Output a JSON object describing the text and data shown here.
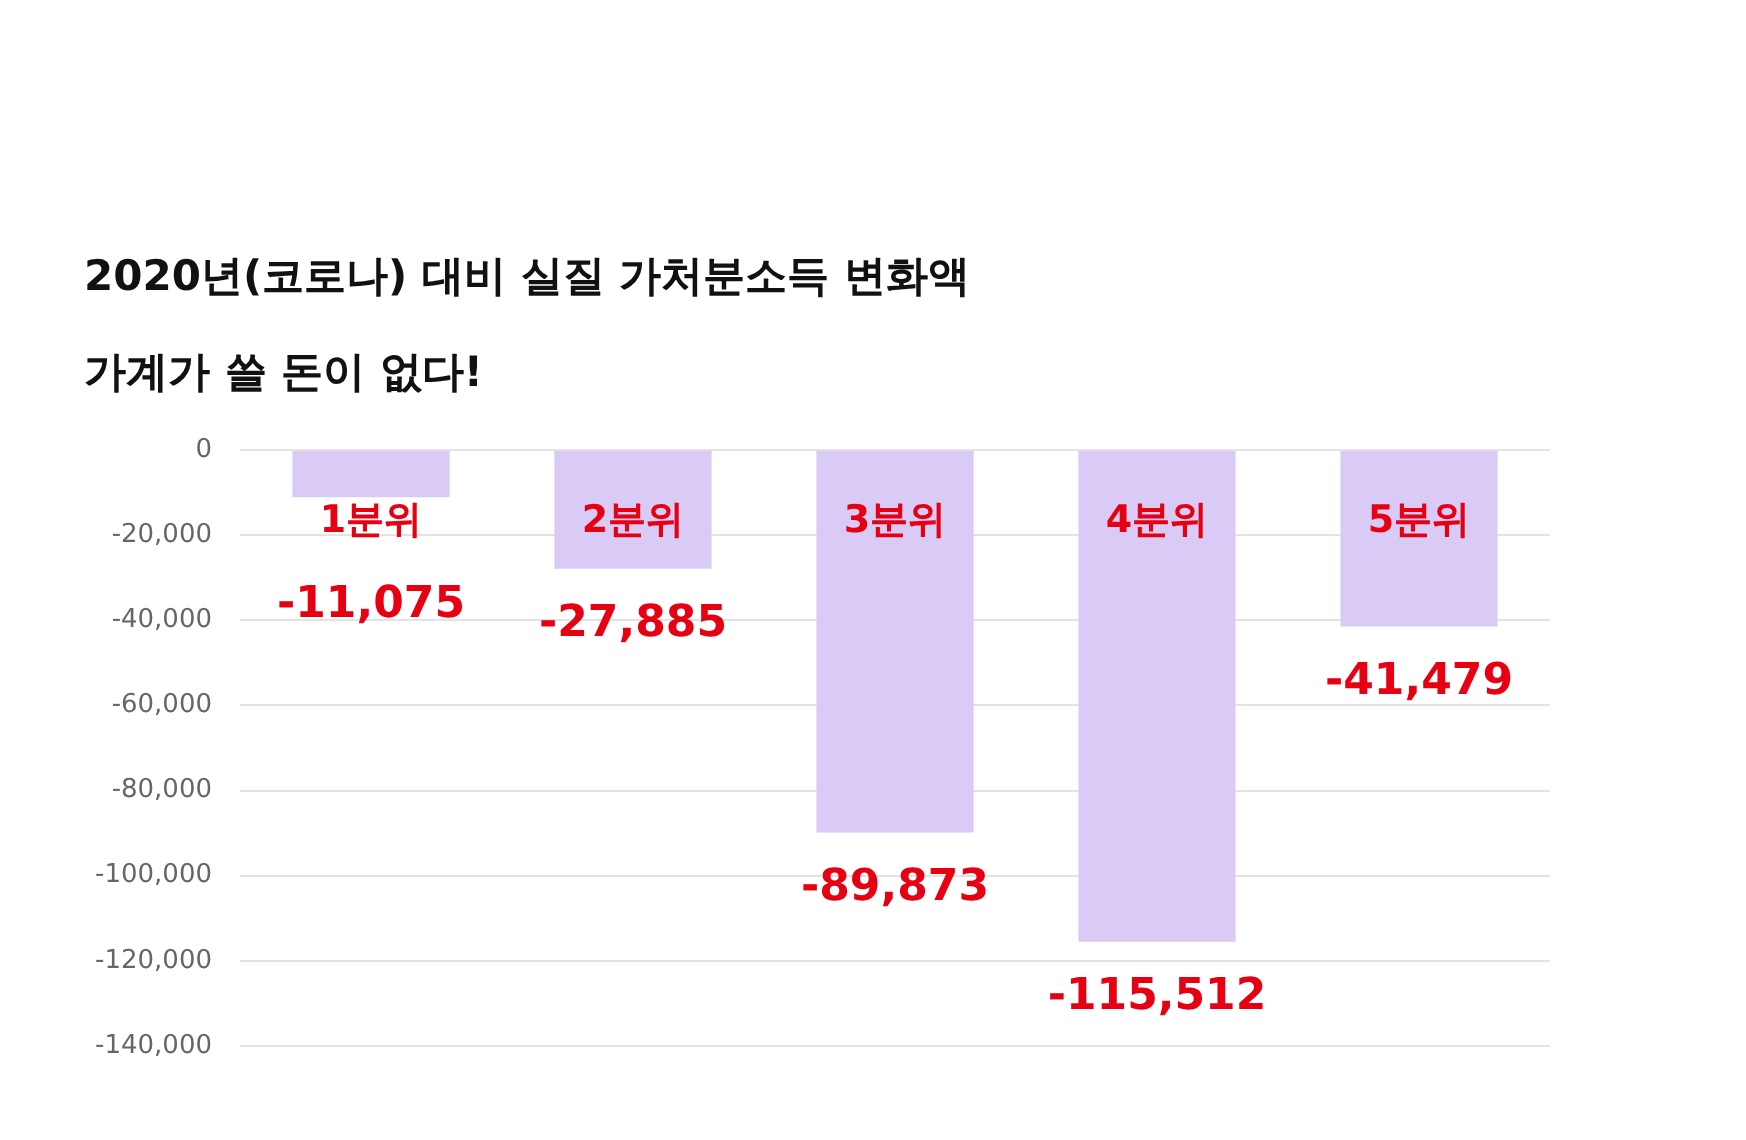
{
  "chart_data": {
    "type": "bar",
    "title": "2020년(코로나) 대비 실질 가처분소득 변화액",
    "subtitle": "가계가 쓸 돈이 없다!",
    "categories": [
      "1분위",
      "2분위",
      "3분위",
      "4분위",
      "5분위"
    ],
    "values": [
      -11075,
      -27885,
      -89873,
      -115512,
      -41479
    ],
    "value_labels": [
      "-11,075",
      "-27,885",
      "-89,873",
      "-115,512",
      "-41,479"
    ],
    "color": "#d9cbf6",
    "ylim": [
      -140000,
      0
    ],
    "yticks": [
      {
        "value": -140000,
        "label": "-140,000"
      },
      {
        "value": -120000,
        "label": "-120,000"
      },
      {
        "value": -100000,
        "label": "-100,000"
      },
      {
        "value": -80000,
        "label": "-80,000"
      },
      {
        "value": -60000,
        "label": "-60,000"
      },
      {
        "value": -40000,
        "label": "-40,000"
      },
      {
        "value": -20000,
        "label": "-20,000"
      },
      0
    ],
    "grid": "y",
    "legend": false
  }
}
